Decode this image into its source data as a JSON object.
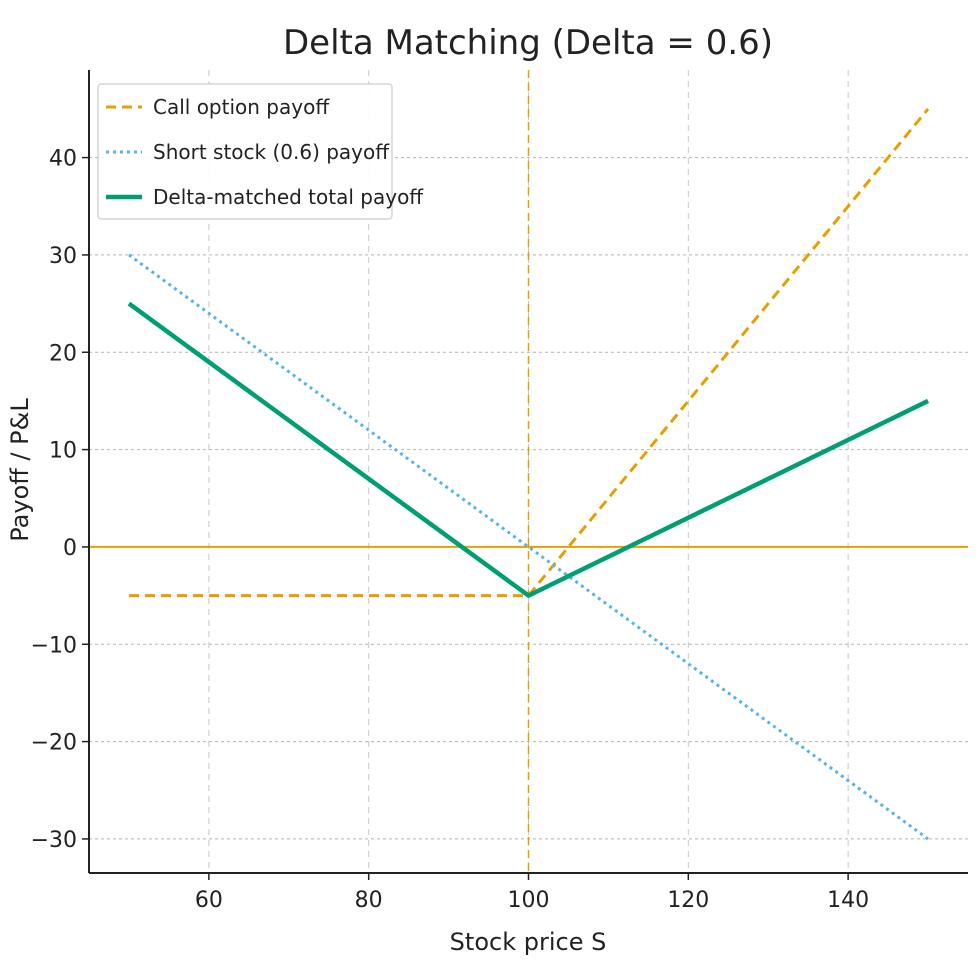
{
  "chart_data": {
    "type": "line",
    "title": "Delta Matching (Delta = 0.6)",
    "xlabel": "Stock price S",
    "ylabel": "Payoff / P&L",
    "xlim": [
      45,
      155
    ],
    "ylim": [
      -33.5,
      49
    ],
    "xticks": [
      60,
      80,
      100,
      120,
      140
    ],
    "yticks": [
      -30,
      -20,
      -10,
      0,
      10,
      20,
      30,
      40
    ],
    "xtick_labels": [
      "60",
      "80",
      "100",
      "120",
      "140"
    ],
    "ytick_labels": [
      "−30",
      "−20",
      "−10",
      "0",
      "10",
      "20",
      "30",
      "40"
    ],
    "grid": true,
    "legend_position": "top-left",
    "strike": 100,
    "zero_line": 0,
    "series": [
      {
        "name": "Call option payoff",
        "style": "dashed",
        "color": "#E69F00",
        "x": [
          50,
          100,
          150
        ],
        "y": [
          -5,
          -5,
          45
        ]
      },
      {
        "name": "Short stock (0.6) payoff",
        "style": "dotted",
        "color": "#56B4E9",
        "x": [
          50,
          150
        ],
        "y": [
          30,
          -30
        ]
      },
      {
        "name": "Delta-matched total payoff",
        "style": "solid",
        "color": "#009E73",
        "x": [
          50,
          100,
          150
        ],
        "y": [
          25,
          -5,
          15
        ]
      }
    ]
  }
}
